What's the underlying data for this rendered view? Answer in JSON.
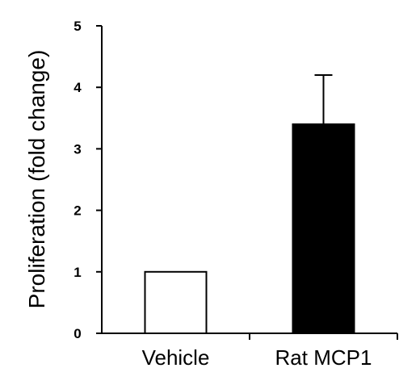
{
  "chart_data": {
    "type": "bar",
    "title": "",
    "xlabel": "",
    "ylabel": "Proliferation  (fold change)",
    "categories": [
      "Vehicle",
      "Rat MCP1"
    ],
    "values": [
      1.0,
      3.4
    ],
    "errors": [
      null,
      0.8
    ],
    "bar_fills": [
      "#ffffff",
      "#000000"
    ],
    "bar_stroke": "#000000",
    "ylim": [
      0,
      5
    ],
    "yticks": [
      "0",
      "1",
      "2",
      "3",
      "4",
      "5"
    ],
    "grid": false,
    "legend": "none"
  }
}
